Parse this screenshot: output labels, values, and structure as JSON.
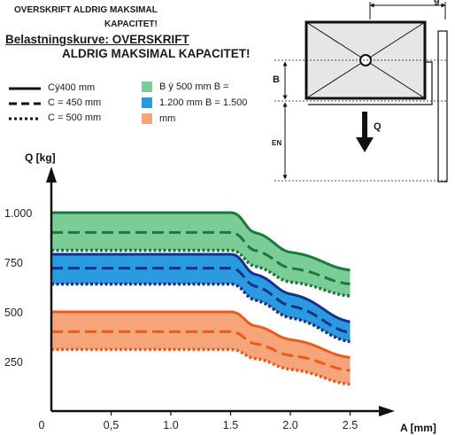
{
  "header": {
    "warning_line1": "OVERSKRIFT ALDRIG MAKSIMAL",
    "warning_line2": "KAPACITET!",
    "title_line1": "Belastningskurve: OVERSKRIFT",
    "title_line2": "ALDRIG MAKSIMAL KAPACITET!"
  },
  "legend": {
    "lines": [
      {
        "label": "Cÿ400 mm",
        "style": "solid"
      },
      {
        "label": "C = 450 mm",
        "style": "dashed"
      },
      {
        "label": "C = 500 mm",
        "style": "dotted"
      }
    ],
    "bands": [
      {
        "label": "B ÿ 500 mm B =",
        "color": "#7ccc98"
      },
      {
        "label": "1.200 mm B = 1.500",
        "color": "#2a9be0"
      },
      {
        "label": "mm",
        "color": "#f6a57a"
      }
    ]
  },
  "diagram": {
    "label_b": "B",
    "label_q": "Q",
    "label_en": "EN",
    "label_top": "g"
  },
  "chart_data": {
    "type": "line",
    "xlabel": "A [mm]",
    "ylabel": "Q [kg]",
    "xlim": [
      0,
      2.6
    ],
    "ylim": [
      0,
      1100
    ],
    "x_ticks": [
      0,
      0.5,
      1.0,
      1.5,
      2.0,
      2.5
    ],
    "x_tick_labels": [
      "0",
      "0,5",
      "1.0",
      "1.5",
      "2.0",
      "2.5"
    ],
    "y_ticks": [
      250,
      500,
      750,
      1000
    ],
    "y_tick_labels": [
      "250",
      "500",
      "750",
      "1.000"
    ],
    "groups": [
      {
        "band": "B ÿ 500 mm B =",
        "fill": "#7ccc98",
        "stroke": "#1a7a3a",
        "series": [
          {
            "style": "solid",
            "x": [
              0,
              1.5,
              1.7,
              2.0,
              2.5
            ],
            "y": [
              1000,
              1000,
              900,
              800,
              710
            ]
          },
          {
            "style": "dashed",
            "x": [
              0,
              1.5,
              1.7,
              2.0,
              2.5
            ],
            "y": [
              900,
              900,
              810,
              720,
              640
            ]
          },
          {
            "style": "dotted",
            "x": [
              0,
              1.5,
              1.7,
              2.0,
              2.5
            ],
            "y": [
              810,
              810,
              730,
              650,
              580
            ]
          }
        ]
      },
      {
        "band": "1.200 mm B = 1.500",
        "fill": "#2a9be0",
        "stroke": "#1a2f8a",
        "series": [
          {
            "style": "solid",
            "x": [
              0,
              1.5,
              1.7,
              2.0,
              2.5
            ],
            "y": [
              790,
              790,
              690,
              590,
              450
            ]
          },
          {
            "style": "dashed",
            "x": [
              0,
              1.5,
              1.7,
              2.0,
              2.5
            ],
            "y": [
              720,
              720,
              630,
              530,
              395
            ]
          },
          {
            "style": "dotted",
            "x": [
              0,
              1.5,
              1.7,
              2.0,
              2.5
            ],
            "y": [
              640,
              640,
              560,
              470,
              350
            ]
          }
        ]
      },
      {
        "band": "mm",
        "fill": "#f6a57a",
        "stroke": "#e85c1e",
        "series": [
          {
            "style": "solid",
            "x": [
              0,
              1.5,
              1.7,
              2.0,
              2.5
            ],
            "y": [
              500,
              500,
              430,
              360,
              270
            ]
          },
          {
            "style": "dashed",
            "x": [
              0,
              1.5,
              1.7,
              2.0,
              2.5
            ],
            "y": [
              400,
              400,
              340,
              280,
              205
            ]
          },
          {
            "style": "dotted",
            "x": [
              0,
              1.5,
              1.7,
              2.0,
              2.5
            ],
            "y": [
              310,
              310,
              265,
              210,
              135
            ]
          }
        ]
      }
    ]
  }
}
